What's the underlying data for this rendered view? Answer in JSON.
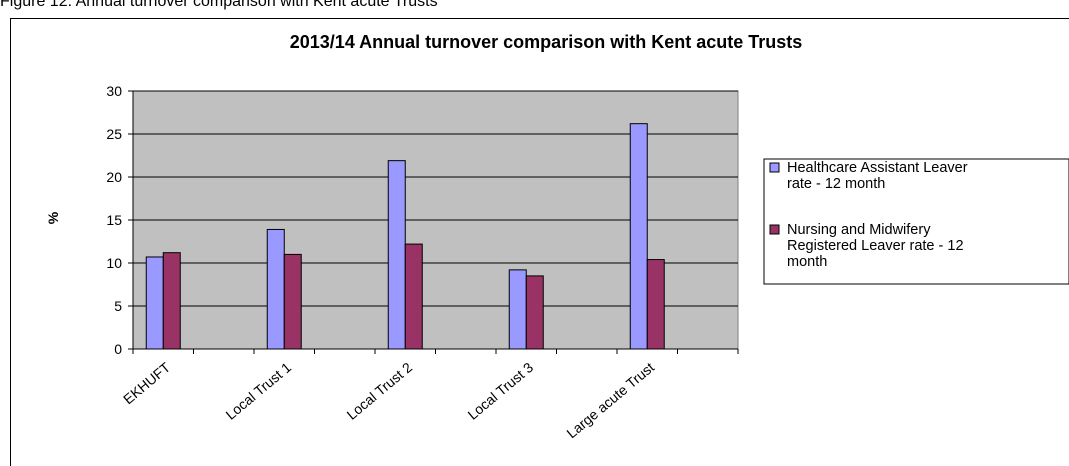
{
  "caption": "Figure 12: Annual turnover comparison with Kent acute Trusts",
  "chart_data": {
    "type": "bar",
    "title": "2013/14 Annual turnover comparison with Kent acute Trusts",
    "xlabel": "",
    "ylabel": "%",
    "ylim": [
      0,
      30
    ],
    "yticks": [
      0,
      5,
      10,
      15,
      20,
      25,
      30
    ],
    "grid": true,
    "legend_position": "right",
    "categories": [
      "EKHUFT",
      "",
      "Local Trust 1",
      "",
      "Local Trust 2",
      "",
      "Local Trust 3",
      "",
      "Large acute Trust",
      ""
    ],
    "series": [
      {
        "name": "Healthcare Assistant Leaver rate - 12 month",
        "legend_lines": [
          "Healthcare Assistant Leaver",
          "rate  - 12 month"
        ],
        "color": "#9999FF",
        "values": [
          10.7,
          null,
          13.9,
          null,
          21.9,
          null,
          9.2,
          null,
          26.2,
          null
        ]
      },
      {
        "name": "Nursing and Midwifery Registered Leaver rate - 12 month",
        "legend_lines": [
          "Nursing and Midwifery",
          "Registered Leaver rate - 12",
          "month"
        ],
        "color": "#993366",
        "values": [
          11.2,
          null,
          11.0,
          null,
          12.2,
          null,
          8.5,
          null,
          10.4,
          null
        ]
      }
    ],
    "plot_background": "#C0C0C0"
  }
}
